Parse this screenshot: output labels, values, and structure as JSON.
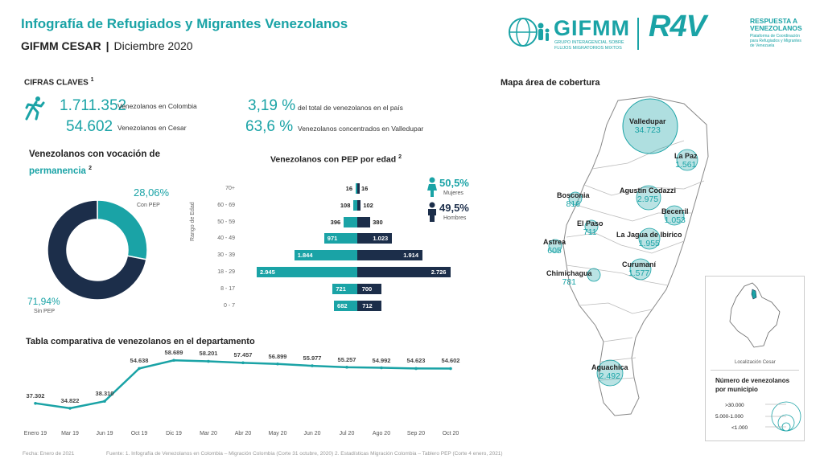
{
  "header": {
    "title": "Infografía de Refugiados y Migrantes Venezolanos",
    "subtitle_left": "GIFMM CESAR",
    "subtitle_sep": "|",
    "subtitle_right": "Diciembre 2020"
  },
  "logos": {
    "gifmm": "GIFMM",
    "gifmm_sub1": "GRUPO INTERAGENCIAL SOBRE",
    "gifmm_sub2": "FLUJOS MIGRATORIOS MIXTOS",
    "r4v": "R4V",
    "r4v_title1": "RESPUESTA A",
    "r4v_title2": "VENEZOLANOS",
    "r4v_sub1": "Plataforma de Coordinación",
    "r4v_sub2": "para Refugiados y Migrantes",
    "r4v_sub3": "de Venezuela"
  },
  "key_figures": {
    "heading": "CIFRAS CLAVES",
    "heading_sup": "1",
    "items": [
      {
        "value": "1.711.352",
        "label": "Venezolanos en Colombia"
      },
      {
        "value": "54.602",
        "label": "Venezolanos en Cesar"
      },
      {
        "value": "3,19 %",
        "label": "del total de venezolanos en el país"
      },
      {
        "value": "63,6 %",
        "label": "Venezolanos concentrados en Valledupar"
      }
    ]
  },
  "permanence": {
    "heading_1": "Venezolanos con vocación de",
    "heading_2": "permanencia",
    "heading_sup": "2",
    "con_pep_pct": "28,06%",
    "con_pep_label": "Con PEP",
    "sin_pep_pct": "71,94%",
    "sin_pep_label": "Sin PEP",
    "color_con": "#1aa3a6",
    "color_sin": "#1c2e4a"
  },
  "pep_age": {
    "heading": "Venezolanos con PEP por edad",
    "heading_sup": "2",
    "axis_label": "Rango de Edad",
    "women_pct": "50,5%",
    "women_label": "Mujeres",
    "men_pct": "49,5%",
    "men_label": "Hombres"
  },
  "map": {
    "heading": "Mapa área de cobertura",
    "inset_label": "Localización Cesar",
    "legend_title_1": "Número de venezolanos",
    "legend_title_2": "por municipio",
    "legend_items": [
      ">30.000",
      "5.000-1.000",
      "<1.000"
    ],
    "municipalities": [
      {
        "name": "Valledupar",
        "value": "34.723"
      },
      {
        "name": "La Paz",
        "value": "1.561"
      },
      {
        "name": "Bosconia",
        "value": "816"
      },
      {
        "name": "Agustín Codazzi",
        "value": "2.975"
      },
      {
        "name": "Becerril",
        "value": "1.053"
      },
      {
        "name": "El Paso",
        "value": "711"
      },
      {
        "name": "La Jagua de Ibirico",
        "value": "1.955"
      },
      {
        "name": "Astrea",
        "value": "605"
      },
      {
        "name": "Curumaní",
        "value": "1.577"
      },
      {
        "name": "Chimichagua",
        "value": "781"
      },
      {
        "name": "Aguachica",
        "value": "2.492"
      }
    ]
  },
  "comparative": {
    "heading": "Tabla comparativa de venezolanos en el departamento"
  },
  "footer": {
    "date": "Fecha: Enero de 2021",
    "source": "Fuente: 1. Infografía de Venezolanos en Colombia – Migración Colombia (Corte 31 octubre, 2020)   2. Estadísticas Migración Colombia – Tablero PEP (Corte 4 enero, 2021)"
  },
  "chart_data": [
    {
      "type": "pie",
      "title": "Venezolanos con vocación de permanencia",
      "categories": [
        "Con PEP",
        "Sin PEP"
      ],
      "values": [
        28.06,
        71.94
      ]
    },
    {
      "type": "bar",
      "title": "Venezolanos con PEP por edad",
      "ylabel": "Rango de Edad",
      "categories": [
        "70+",
        "60 - 69",
        "50 - 59",
        "40 - 49",
        "30 - 39",
        "18 - 29",
        "8 - 17",
        "0 - 7"
      ],
      "series": [
        {
          "name": "Mujeres",
          "values": [
            16,
            108,
            396,
            971,
            1844,
            2945,
            721,
            682
          ],
          "labels": [
            "16",
            "108",
            "396",
            "971",
            "1.844",
            "2.945",
            "721",
            "682"
          ]
        },
        {
          "name": "Hombres",
          "values": [
            16,
            102,
            380,
            1023,
            1914,
            2726,
            700,
            712
          ],
          "labels": [
            "16",
            "102",
            "380",
            "1.023",
            "1.914",
            "2.726",
            "700",
            "712"
          ]
        }
      ]
    },
    {
      "type": "line",
      "title": "Tabla comparativa de venezolanos en el departamento",
      "x": [
        "Enero 19",
        "Mar 19",
        "Jun 19",
        "Oct 19",
        "Dic 19",
        "Mar 20",
        "Abr 20",
        "May 20",
        "Jun 20",
        "Jul 20",
        "Ago 20",
        "Sep 20",
        "Oct 20"
      ],
      "values": [
        37302,
        34822,
        38310,
        54638,
        58689,
        58201,
        57457,
        56899,
        55977,
        55257,
        54992,
        54623,
        54602
      ],
      "labels": [
        "37.302",
        "34.822",
        "38.310",
        "54.638",
        "58.689",
        "58.201",
        "57.457",
        "56.899",
        "55.977",
        "55.257",
        "54.992",
        "54.623",
        "54.602"
      ]
    }
  ]
}
